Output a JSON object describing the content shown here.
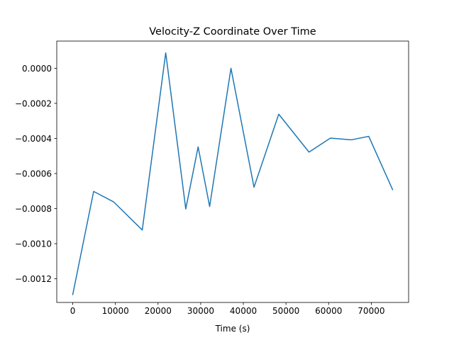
{
  "chart_data": {
    "type": "line",
    "title": "Velocity-Z Coordinate Over Time",
    "xlabel": "Time (s)",
    "ylabel": "",
    "xlim": [
      -3750,
      78750
    ],
    "ylim": [
      -0.001335,
      0.000155
    ],
    "x_ticks": [
      0,
      10000,
      20000,
      30000,
      40000,
      50000,
      60000,
      70000
    ],
    "x_tick_labels": [
      "0",
      "10000",
      "20000",
      "30000",
      "40000",
      "50000",
      "60000",
      "70000"
    ],
    "y_ticks": [
      0.0,
      -0.0002,
      -0.0004,
      -0.0006,
      -0.0008,
      -0.001,
      -0.0012
    ],
    "y_tick_labels": [
      "0.0000",
      "−0.0002",
      "−0.0004",
      "−0.0006",
      "−0.0008",
      "−0.0010",
      "−0.0012"
    ],
    "grid": false,
    "series": [
      {
        "color": "#1f77b4",
        "x": [
          0,
          4900,
          9600,
          16300,
          21800,
          26500,
          29400,
          32100,
          37100,
          42500,
          48300,
          55400,
          60400,
          65300,
          69400,
          75000
        ],
        "y": [
          -0.00129,
          -0.000702,
          -0.000762,
          -0.000922,
          8.8e-05,
          -0.000802,
          -0.000448,
          -0.000788,
          0.0,
          -0.000678,
          -0.000262,
          -0.000478,
          -0.000398,
          -0.000408,
          -0.000388,
          -0.000692
        ]
      }
    ]
  }
}
